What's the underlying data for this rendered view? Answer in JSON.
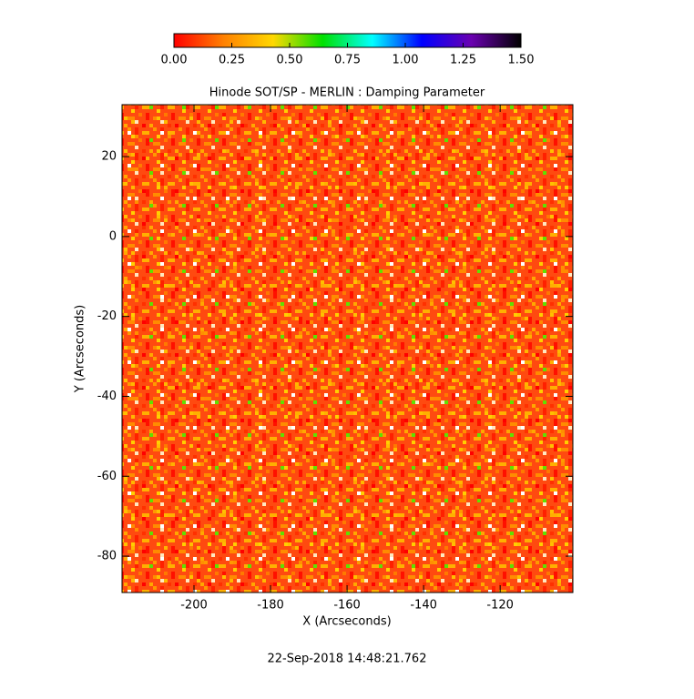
{
  "chart_data": {
    "type": "heatmap",
    "title": "Hinode SOT/SP - MERLIN : Damping Parameter",
    "x_label": "X (Arcseconds)",
    "y_label": "Y (Arcseconds)",
    "xlim": [
      -218.8,
      -101
    ],
    "xticks": [
      -200,
      -180,
      -160,
      -140,
      -120
    ],
    "ylim": [
      -89.1,
      33
    ],
    "yticks": [
      -80,
      -60,
      -40,
      -20,
      0,
      20
    ],
    "colorbar": {
      "lim": [
        0,
        1.5
      ],
      "ticks": [
        {
          "value": 0,
          "label": "0.00"
        },
        {
          "value": 0.25,
          "label": "0.25"
        },
        {
          "value": 0.5,
          "label": "0.50"
        },
        {
          "value": 0.75,
          "label": "0.75"
        },
        {
          "value": 1,
          "label": "1.00"
        },
        {
          "value": 1.25,
          "label": "1.25"
        },
        {
          "value": 1.5,
          "label": "1.50"
        }
      ],
      "colors": [
        "#ff0000",
        "#ff8000",
        "#ffd800",
        "#00e000",
        "#00ffff",
        "#0000ff",
        "#6a00b0",
        "#000000"
      ]
    },
    "footer": "22-Sep-2018 14:48:21.762"
  }
}
